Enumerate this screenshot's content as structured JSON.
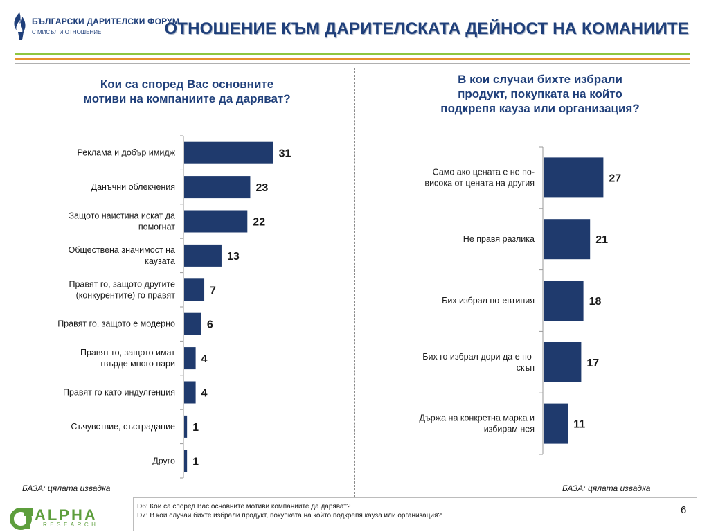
{
  "header": {
    "logo_name": "БЪЛГАРСКИ ДАРИТЕЛСКИ ФОРУМ",
    "logo_tagline": "С МИСЪЛ И ОТНОШЕНИЕ",
    "title": "ОТНОШЕНИЕ КЪМ ДАРИТЕЛСКАТА ДЕЙНОСТ НА КОМАНИИТЕ"
  },
  "colors": {
    "bar": "#1f3a6d",
    "title": "#1f3f7a",
    "rule_green": "#8fc63f",
    "rule_orange": "#e8912c"
  },
  "left": {
    "question_lines": [
      "Кои са според Вас основните",
      "мотиви на компаниите да даряват?"
    ],
    "base": "БАЗА: цялата извадка"
  },
  "right": {
    "question_lines": [
      "В кои случаи бихте избрали",
      "продукт, покупката на който",
      "подкрепя кауза или организация?"
    ],
    "base": "БАЗА: цялата извадка"
  },
  "chart_data": [
    {
      "type": "bar",
      "orientation": "horizontal",
      "categories": [
        [
          "Реклама и добър имидж"
        ],
        [
          "Данъчни облекчения"
        ],
        [
          "Защото наистина искат да",
          "помогнат"
        ],
        [
          "Обществена значимост на",
          "каузата"
        ],
        [
          "Правят го, защото другите",
          "(конкурентите) го правят"
        ],
        [
          "Правят го, защото е модерно"
        ],
        [
          "Правят го, защото имат",
          "твърде много пари"
        ],
        [
          "Правят го като индулгенция"
        ],
        [
          "Съчувствие, състрадание"
        ],
        [
          "Друго"
        ]
      ],
      "values": [
        31,
        23,
        22,
        13,
        7,
        6,
        4,
        4,
        1,
        1
      ],
      "data_labels": [
        "31",
        "23",
        "22",
        "13",
        "7",
        "6",
        "4",
        "4",
        "1",
        "1"
      ],
      "xlim": [
        0,
        35
      ]
    },
    {
      "type": "bar",
      "orientation": "horizontal",
      "categories": [
        [
          "Само ако цената е не по-",
          "висока от цената на другия"
        ],
        [
          "Не правя разлика"
        ],
        [
          "Бих избрал по-евтиния"
        ],
        [
          "Бих го избрал дори да е по-",
          "скъп"
        ],
        [
          "Държа на конкретна марка и",
          "избирам нея"
        ]
      ],
      "values": [
        27,
        21,
        18,
        17,
        11
      ],
      "data_labels": [
        "27",
        "21",
        "18",
        "17",
        "11"
      ],
      "xlim": [
        0,
        35
      ]
    }
  ],
  "footer": {
    "note1": "D6: Кои са според Вас основните мотиви компаниите да даряват?",
    "note2": "D7: В кои случаи бихте избрали продукт, покупката на който подкрепя кауза или организация?",
    "page_number": "6",
    "alpha_word": "ALPHA",
    "alpha_sub": "RESEARCH"
  }
}
